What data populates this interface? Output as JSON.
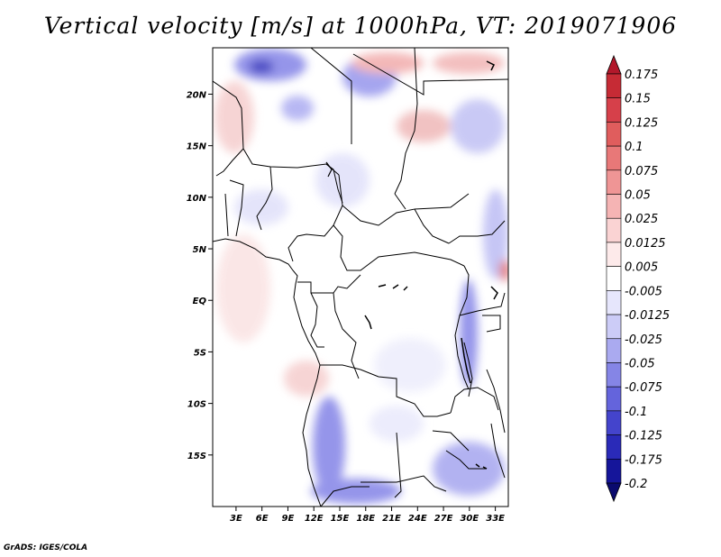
{
  "title": "Vertical velocity [m/s] at 1000hPa, VT: 2019071906",
  "footer": "GrADS: IGES/COLA",
  "lat_ticks": [
    {
      "label": "20N",
      "value": 20
    },
    {
      "label": "15N",
      "value": 15
    },
    {
      "label": "10N",
      "value": 10
    },
    {
      "label": "5N",
      "value": 5
    },
    {
      "label": "EQ",
      "value": 0
    },
    {
      "label": "5S",
      "value": -5
    },
    {
      "label": "10S",
      "value": -10
    },
    {
      "label": "15S",
      "value": -15
    }
  ],
  "lon_ticks": [
    {
      "label": "3E",
      "value": 3
    },
    {
      "label": "6E",
      "value": 6
    },
    {
      "label": "9E",
      "value": 9
    },
    {
      "label": "12E",
      "value": 12
    },
    {
      "label": "15E",
      "value": 15
    },
    {
      "label": "18E",
      "value": 18
    },
    {
      "label": "21E",
      "value": 21
    },
    {
      "label": "24E",
      "value": 24
    },
    {
      "label": "27E",
      "value": 27
    },
    {
      "label": "30E",
      "value": 30
    },
    {
      "label": "33E",
      "value": 33
    }
  ],
  "extent": {
    "lon_min": 0.3,
    "lon_max": 34.5,
    "lat_min": -20,
    "lat_max": 24.5
  },
  "colorbar": {
    "labels": [
      "0.175",
      "0.15",
      "0.125",
      "0.1",
      "0.075",
      "0.05",
      "0.025",
      "0.0125",
      "0.005",
      "-0.005",
      "-0.0125",
      "-0.025",
      "-0.05",
      "-0.075",
      "-0.1",
      "-0.125",
      "-0.175",
      "-0.2"
    ],
    "colors": [
      "#b2182b",
      "#c62b35",
      "#d6404a",
      "#e05d5d",
      "#e87878",
      "#ef9595",
      "#f5b4b4",
      "#fad3d3",
      "#fdeaea",
      "#ffffff",
      "#e6e6fc",
      "#ccccf7",
      "#aaaaf0",
      "#8585e6",
      "#6464dc",
      "#4444cc",
      "#2a2ab8",
      "#15159a",
      "#0a0a6e"
    ]
  }
}
